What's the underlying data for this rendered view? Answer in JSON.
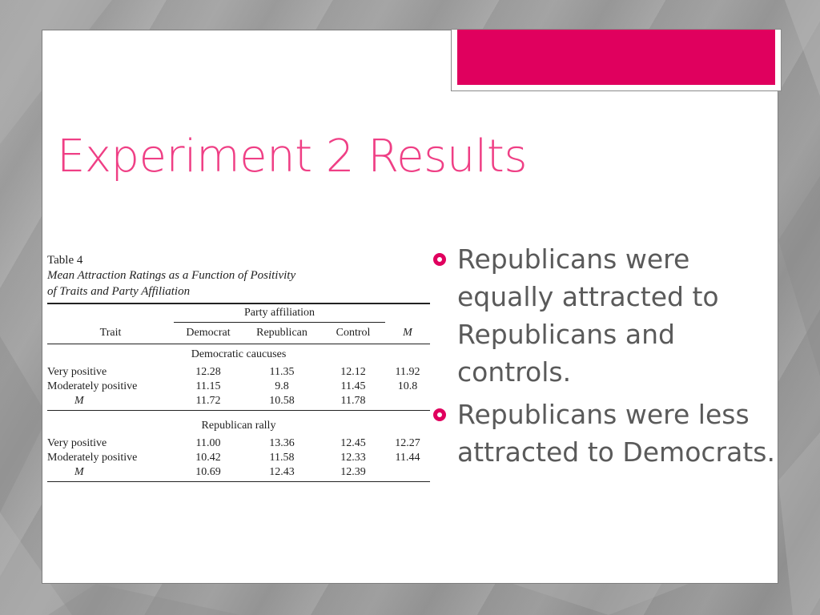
{
  "slide": {
    "title": "Experiment 2 Results"
  },
  "table": {
    "label": "Table 4",
    "caption_line1": "Mean Attraction Ratings as a Function of Positivity",
    "caption_line2": "of Traits and Party Affiliation",
    "spanner_header": "Party affiliation",
    "columns": [
      "Trait",
      "Democrat",
      "Republican",
      "Control",
      "M"
    ],
    "groups": [
      {
        "heading": "Democratic caucuses",
        "rows": [
          [
            "Very positive",
            "12.28",
            "11.35",
            "12.12",
            "11.92"
          ],
          [
            "Moderately positive",
            "11.15",
            "9.8",
            "11.45",
            "10.8"
          ],
          [
            "M",
            "11.72",
            "10.58",
            "11.78",
            ""
          ]
        ]
      },
      {
        "heading": "Republican rally",
        "rows": [
          [
            "Very positive",
            "11.00",
            "13.36",
            "12.45",
            "12.27"
          ],
          [
            "Moderately positive",
            "10.42",
            "11.58",
            "12.33",
            "11.44"
          ],
          [
            "M",
            "10.69",
            "12.43",
            "12.39",
            ""
          ]
        ]
      }
    ]
  },
  "bullets": [
    "Republicans were equally attracted to Republicans and controls.",
    "Republicans were less attracted to Democrats."
  ],
  "colors": {
    "accent": "#e0005e",
    "title": "#ef3f85",
    "body_text": "#5a5a5a",
    "background": "#a0a0a0"
  },
  "icons": {
    "bullet": "ring-bullet-icon"
  }
}
